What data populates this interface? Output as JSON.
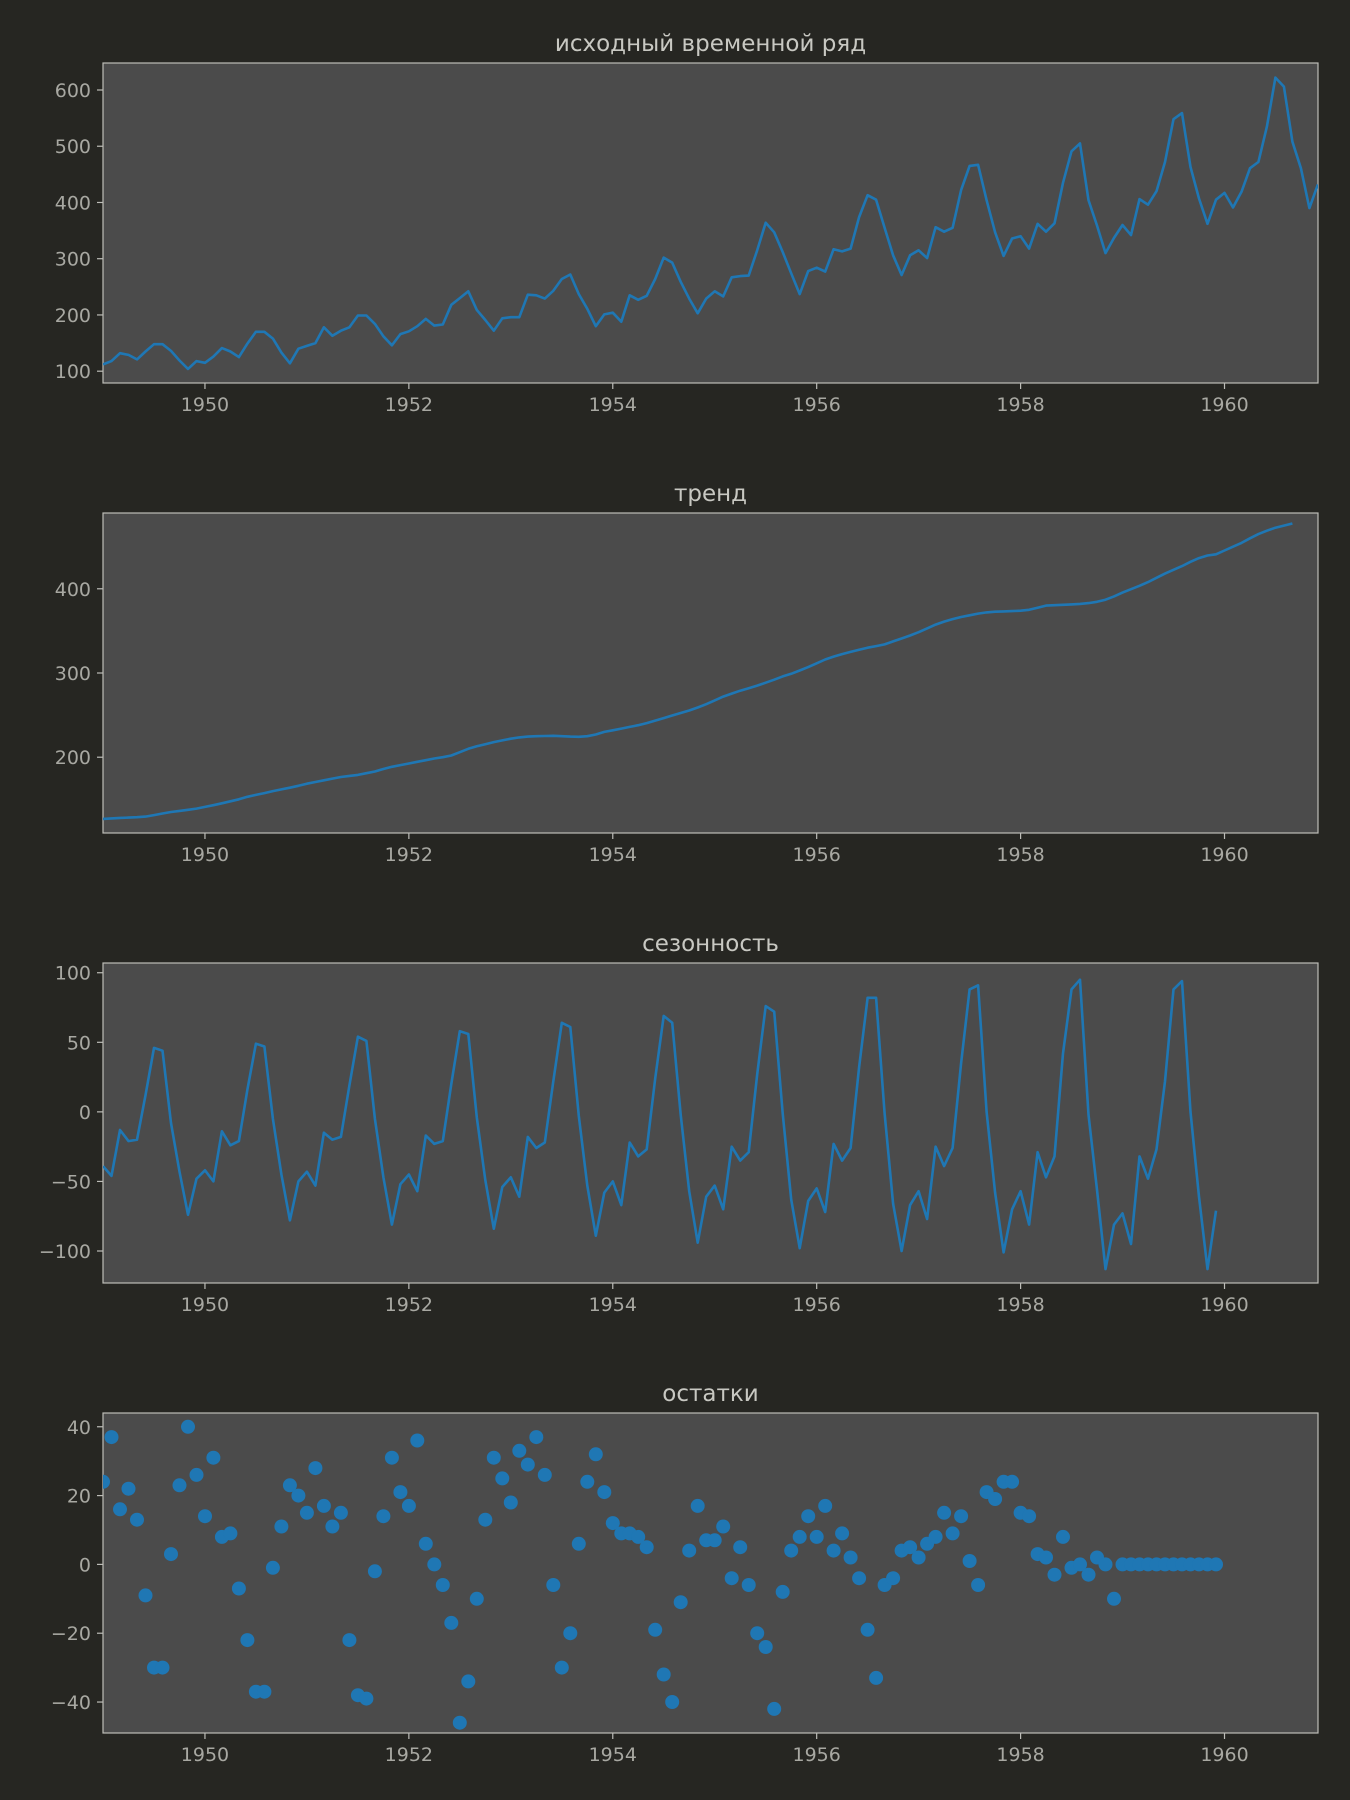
{
  "chart_data": [
    {
      "type": "line",
      "title": "исходный временной ряд",
      "xlabel": "",
      "ylabel": "",
      "xlim": [
        1949.0,
        1960.917
      ],
      "ylim": [
        79,
        648
      ],
      "xticks": [
        "1950",
        "1952",
        "1954",
        "1956",
        "1958",
        "1960"
      ],
      "yticks": [
        "100",
        "200",
        "300",
        "400",
        "500",
        "600"
      ],
      "grid": false,
      "series_color": "#1f77b4",
      "x_start": 1949.0,
      "x_step": 0.08333,
      "values": [
        112,
        118,
        132,
        129,
        121,
        135,
        148,
        148,
        136,
        119,
        104,
        118,
        115,
        126,
        141,
        135,
        125,
        149,
        170,
        170,
        158,
        133,
        114,
        140,
        145,
        150,
        178,
        163,
        172,
        178,
        199,
        199,
        184,
        162,
        146,
        166,
        171,
        180,
        193,
        181,
        183,
        218,
        230,
        242,
        209,
        191,
        172,
        194,
        196,
        196,
        236,
        235,
        229,
        243,
        264,
        272,
        237,
        211,
        180,
        201,
        204,
        188,
        235,
        227,
        234,
        264,
        302,
        293,
        259,
        229,
        203,
        229,
        242,
        233,
        267,
        269,
        270,
        315,
        364,
        347,
        312,
        274,
        237,
        278,
        284,
        277,
        317,
        313,
        318,
        374,
        413,
        405,
        355,
        306,
        271,
        306,
        315,
        301,
        356,
        348,
        355,
        422,
        465,
        467,
        404,
        347,
        305,
        336,
        340,
        318,
        362,
        348,
        363,
        435,
        491,
        505,
        404,
        359,
        310,
        337,
        360,
        342,
        406,
        396,
        420,
        472,
        548,
        559,
        463,
        407,
        362,
        405,
        417,
        391,
        419,
        461,
        472,
        535,
        622,
        606,
        508,
        461,
        390,
        432
      ]
    },
    {
      "type": "line",
      "title": "тренд",
      "xlabel": "",
      "ylabel": "",
      "xlim": [
        1949.0,
        1960.917
      ],
      "ylim": [
        110,
        490
      ],
      "xticks": [
        "1950",
        "1952",
        "1954",
        "1956",
        "1958",
        "1960"
      ],
      "yticks": [
        "200",
        "300",
        "400"
      ],
      "grid": false,
      "series_color": "#1f77b4",
      "x_start": 1949.0,
      "x_step": 0.08333,
      "values": [
        126.8,
        127.3,
        127.9,
        128.3,
        128.8,
        129.5,
        131.3,
        133.2,
        134.9,
        136.3,
        137.6,
        139.0,
        141.0,
        143.0,
        145.3,
        147.6,
        150.0,
        153.0,
        155.3,
        157.4,
        159.7,
        161.8,
        163.8,
        166.0,
        168.5,
        170.6,
        172.6,
        174.6,
        176.5,
        177.8,
        179.0,
        181.0,
        183.0,
        186.0,
        188.6,
        190.6,
        192.5,
        194.6,
        196.5,
        198.5,
        200.0,
        202.0,
        206.0,
        210.0,
        213.0,
        215.5,
        218.0,
        220.0,
        222.0,
        223.5,
        224.5,
        225.0,
        225.2,
        225.4,
        225.0,
        224.5,
        224.2,
        225.0,
        227.0,
        230.0,
        232.0,
        234.0,
        236.0,
        238.0,
        240.5,
        243.5,
        246.5,
        249.5,
        252.5,
        255.5,
        259.0,
        263.0,
        267.5,
        272.0,
        275.5,
        279.0,
        282.0,
        285.0,
        288.5,
        292.0,
        296.0,
        299.0,
        303.0,
        307.0,
        311.5,
        316.0,
        319.5,
        322.5,
        325.0,
        327.5,
        330.0,
        332.0,
        334.0,
        337.5,
        341.0,
        344.5,
        348.5,
        353.0,
        357.5,
        361.0,
        364.0,
        366.5,
        368.5,
        370.5,
        372.0,
        372.8,
        373.2,
        373.5,
        374.0,
        375.0,
        377.5,
        380.0,
        380.5,
        381.0,
        381.5,
        382.0,
        383.0,
        384.5,
        387.0,
        391.0,
        395.5,
        399.5,
        403.5,
        408.0,
        413.0,
        418.0,
        422.5,
        427.0,
        432.0,
        436.5,
        439.5,
        441.0,
        445.5,
        450.0,
        454.5,
        460.0,
        465.0,
        469.0,
        472.5,
        475.0,
        477.5,
        null,
        null,
        null,
        null,
        null,
        null
      ]
    },
    {
      "type": "line",
      "title": "сезонность",
      "xlabel": "",
      "ylabel": "",
      "xlim": [
        1949.0,
        1960.917
      ],
      "ylim": [
        -123,
        107
      ],
      "xticks": [
        "1950",
        "1952",
        "1954",
        "1956",
        "1958",
        "1960"
      ],
      "yticks": [
        "100",
        "50",
        "0",
        "−50",
        "−100"
      ],
      "grid": false,
      "series_color": "#1f77b4",
      "x_start": 1949.0,
      "x_step": 0.08333,
      "values": [
        -39,
        -46,
        -13,
        -21,
        -20,
        12,
        46,
        44,
        -8,
        -43,
        -74,
        -48,
        -42,
        -50,
        -14,
        -24,
        -21,
        16,
        49,
        47,
        -5,
        -45,
        -78,
        -50,
        -43,
        -53,
        -15,
        -20,
        -18,
        19,
        54,
        51,
        -5,
        -47,
        -81,
        -52,
        -45,
        -57,
        -17,
        -23,
        -21,
        20,
        58,
        56,
        -4,
        -49,
        -84,
        -54,
        -47,
        -61,
        -18,
        -26,
        -22,
        22,
        64,
        61,
        -3,
        -53,
        -89,
        -58,
        -50,
        -67,
        -22,
        -32,
        -27,
        24,
        69,
        64,
        -2,
        -57,
        -94,
        -61,
        -53,
        -70,
        -25,
        -35,
        -29,
        27,
        76,
        72,
        -1,
        -63,
        -98,
        -64,
        -55,
        -72,
        -23,
        -35,
        -26,
        32,
        82,
        82,
        -1,
        -66,
        -100,
        -67,
        -57,
        -77,
        -25,
        -39,
        -26,
        35,
        88,
        91,
        0,
        -58,
        -101,
        -70,
        -57,
        -81,
        -29,
        -47,
        -32,
        42,
        88,
        95,
        -2,
        -56,
        -113,
        -81,
        -73,
        -95,
        -32,
        -48,
        -27,
        22,
        88,
        94,
        0,
        -61,
        -113,
        -71,
        null,
        null,
        null,
        null,
        null,
        null,
        null,
        null,
        null,
        null,
        null,
        null
      ]
    },
    {
      "type": "scatter",
      "title": "остатки",
      "xlabel": "",
      "ylabel": "",
      "xlim": [
        1949.0,
        1960.917
      ],
      "ylim": [
        -49,
        44
      ],
      "xticks": [
        "1950",
        "1952",
        "1954",
        "1956",
        "1958",
        "1960"
      ],
      "yticks": [
        "40",
        "20",
        "0",
        "−20",
        "−40"
      ],
      "grid": false,
      "series_color": "#1f77b4",
      "x_start": 1949.0,
      "x_step": 0.08333,
      "values": [
        24,
        37,
        16,
        22,
        13,
        -9,
        -30,
        -30,
        3,
        23,
        40,
        26,
        14,
        31,
        8,
        9,
        -7,
        -22,
        -37,
        -37,
        -1,
        11,
        23,
        20,
        15,
        28,
        17,
        11,
        15,
        -22,
        -38,
        -39,
        -2,
        14,
        31,
        21,
        17,
        36,
        6,
        0,
        -6,
        -17,
        -46,
        -34,
        -10,
        13,
        31,
        25,
        18,
        33,
        29,
        37,
        26,
        -6,
        -30,
        -20,
        6,
        24,
        32,
        21,
        12,
        9,
        9,
        8,
        5,
        -19,
        -32,
        -40,
        -11,
        4,
        17,
        7,
        7,
        11,
        -4,
        5,
        -6,
        -20,
        -24,
        -42,
        -8,
        4,
        8,
        14,
        8,
        17,
        4,
        9,
        2,
        -4,
        -19,
        -33,
        -6,
        -4,
        4,
        5,
        2,
        6,
        8,
        15,
        9,
        14,
        1,
        -6,
        21,
        19,
        24,
        24,
        15,
        14,
        3,
        2,
        -3,
        8,
        -1,
        0,
        -3,
        2,
        0,
        -10,
        0,
        0,
        0,
        0,
        0,
        0,
        0,
        0,
        0,
        0,
        0,
        0,
        null,
        null,
        null,
        null,
        null,
        null,
        null,
        null,
        null,
        null,
        null,
        null
      ]
    }
  ]
}
